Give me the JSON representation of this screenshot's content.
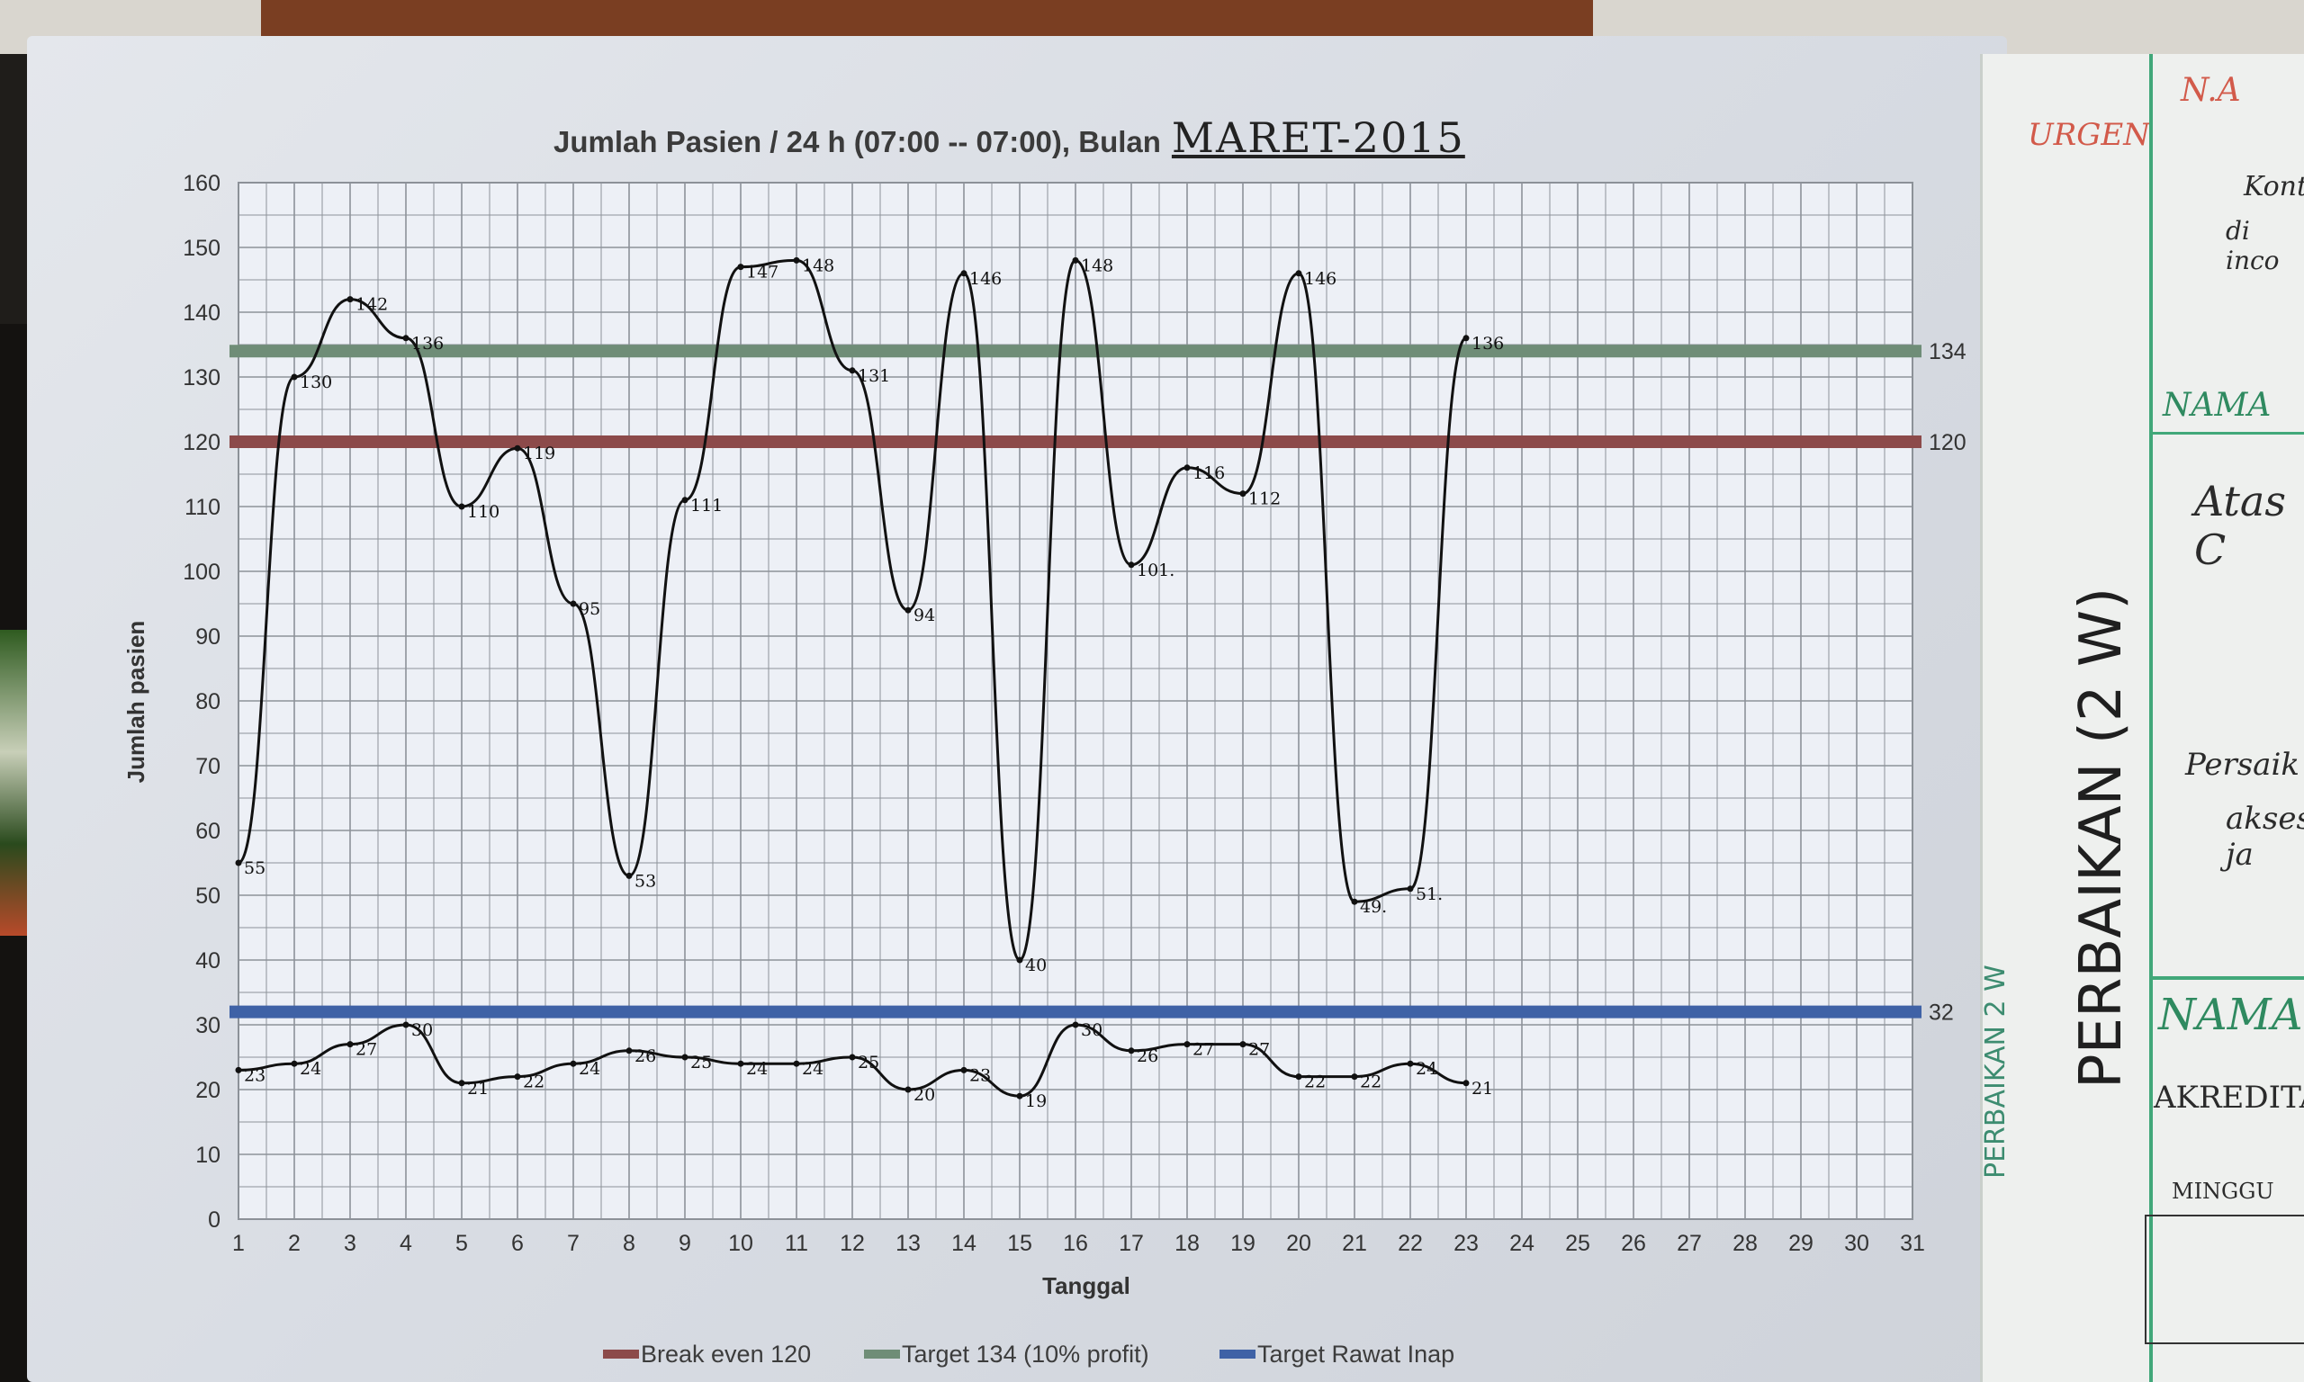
{
  "chart_title": "Jumlah Pasien / 24 h (07:00 -- 07:00), Bulan",
  "chart_month": "MARET-2015",
  "chart_data": {
    "type": "line",
    "xlabel": "Tanggal",
    "ylabel": "Jumlah pasien",
    "xlim": [
      1,
      31
    ],
    "ylim": [
      0,
      160
    ],
    "x_ticks": [
      1,
      2,
      3,
      4,
      5,
      6,
      7,
      8,
      9,
      10,
      11,
      12,
      13,
      14,
      15,
      16,
      17,
      18,
      19,
      20,
      21,
      22,
      23,
      24,
      25,
      26,
      27,
      28,
      29,
      30,
      31
    ],
    "y_ticks": [
      0,
      10,
      20,
      30,
      40,
      50,
      60,
      70,
      80,
      90,
      100,
      110,
      120,
      130,
      140,
      150,
      160
    ],
    "grid": true,
    "series": [
      {
        "name": "Jumlah pasien (handwritten)",
        "color": "#111111",
        "points": [
          {
            "x": 1,
            "y": 55,
            "label": "55"
          },
          {
            "x": 2,
            "y": 130,
            "label": "130"
          },
          {
            "x": 3,
            "y": 142,
            "label": "142"
          },
          {
            "x": 4,
            "y": 136,
            "label": "136"
          },
          {
            "x": 5,
            "y": 110,
            "label": "110"
          },
          {
            "x": 6,
            "y": 119,
            "label": "119"
          },
          {
            "x": 7,
            "y": 95,
            "label": "95"
          },
          {
            "x": 8,
            "y": 53,
            "label": "53"
          },
          {
            "x": 9,
            "y": 111,
            "label": "111"
          },
          {
            "x": 10,
            "y": 147,
            "label": "147"
          },
          {
            "x": 11,
            "y": 148,
            "label": "148"
          },
          {
            "x": 12,
            "y": 131,
            "label": "131"
          },
          {
            "x": 13,
            "y": 94,
            "label": "94"
          },
          {
            "x": 14,
            "y": 146,
            "label": "146"
          },
          {
            "x": 15,
            "y": 40,
            "label": "40"
          },
          {
            "x": 16,
            "y": 148,
            "label": "148"
          },
          {
            "x": 17,
            "y": 101,
            "label": "101."
          },
          {
            "x": 18,
            "y": 116,
            "label": "116"
          },
          {
            "x": 19,
            "y": 112,
            "label": "112"
          },
          {
            "x": 20,
            "y": 146,
            "label": "146"
          },
          {
            "x": 21,
            "y": 49,
            "label": "49."
          },
          {
            "x": 22,
            "y": 51,
            "label": "51."
          },
          {
            "x": 23,
            "y": 136,
            "label": "136"
          }
        ]
      },
      {
        "name": "Rawat Inap (handwritten)",
        "color": "#111111",
        "points": [
          {
            "x": 1,
            "y": 23,
            "label": "23"
          },
          {
            "x": 2,
            "y": 24,
            "label": "24"
          },
          {
            "x": 3,
            "y": 27,
            "label": "27"
          },
          {
            "x": 4,
            "y": 30,
            "label": "30"
          },
          {
            "x": 5,
            "y": 21,
            "label": "21"
          },
          {
            "x": 6,
            "y": 22,
            "label": "22"
          },
          {
            "x": 7,
            "y": 24,
            "label": "24"
          },
          {
            "x": 8,
            "y": 26,
            "label": "26"
          },
          {
            "x": 9,
            "y": 25,
            "label": "25"
          },
          {
            "x": 10,
            "y": 24,
            "label": "24"
          },
          {
            "x": 11,
            "y": 24,
            "label": "24"
          },
          {
            "x": 12,
            "y": 25,
            "label": "25"
          },
          {
            "x": 13,
            "y": 20,
            "label": "20"
          },
          {
            "x": 14,
            "y": 23,
            "label": "23"
          },
          {
            "x": 15,
            "y": 19,
            "label": "19"
          },
          {
            "x": 16,
            "y": 30,
            "label": "30"
          },
          {
            "x": 17,
            "y": 26,
            "label": "26"
          },
          {
            "x": 18,
            "y": 27,
            "label": "27"
          },
          {
            "x": 19,
            "y": 27,
            "label": "27"
          },
          {
            "x": 20,
            "y": 22,
            "label": "22"
          },
          {
            "x": 21,
            "y": 22,
            "label": "22"
          },
          {
            "x": 22,
            "y": 24,
            "label": "24"
          },
          {
            "x": 23,
            "y": 21,
            "label": "21"
          }
        ]
      }
    ],
    "reference_lines": [
      {
        "name": "Break even 120",
        "value": 120,
        "label": "120",
        "color": "#8c4a4a"
      },
      {
        "name": "Target 134 (10% profit)",
        "value": 134,
        "label": "134",
        "color": "#6f8d77"
      },
      {
        "name": "Target Rawat Inap",
        "value": 32,
        "label": "32",
        "color": "#3f62a6"
      }
    ],
    "legend_position": "bottom"
  },
  "side_board": {
    "top_text": [
      "N.A",
      "Konto",
      "di inco"
    ],
    "red_text": "URGEN",
    "vertical_big": "PERBAIKAN (2 W)",
    "vertical_small": "PERBAIKAN 2 W",
    "nama_1": "NAMA",
    "atas": "Atas C",
    "persaik": "Persaik",
    "akses": "akses ja",
    "nama_2": "NAMA",
    "akreditas": "AKREDITAS",
    "minggu": "MINGGU"
  }
}
